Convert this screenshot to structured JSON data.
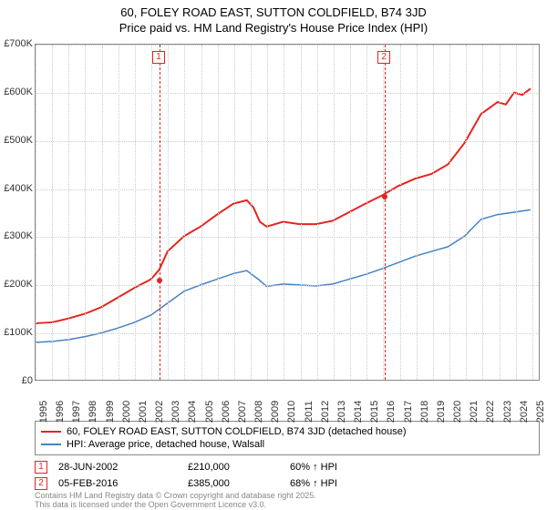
{
  "title_line1": "60, FOLEY ROAD EAST, SUTTON COLDFIELD, B74 3JD",
  "title_line2": "Price paid vs. HM Land Registry's House Price Index (HPI)",
  "chart": {
    "type": "line",
    "background_color": "#ffffff",
    "grid_color": "#cccccc",
    "border_color": "#888888",
    "xlim": [
      1995,
      2025.5
    ],
    "ylim": [
      0,
      700000
    ],
    "ytick_step": 100000,
    "yticks": [
      "£0",
      "£100K",
      "£200K",
      "£300K",
      "£400K",
      "£500K",
      "£600K",
      "£700K"
    ],
    "xticks": [
      1995,
      1996,
      1997,
      1998,
      1999,
      2000,
      2001,
      2002,
      2003,
      2004,
      2005,
      2006,
      2007,
      2008,
      2009,
      2010,
      2011,
      2012,
      2013,
      2014,
      2015,
      2016,
      2017,
      2018,
      2019,
      2020,
      2021,
      2022,
      2023,
      2024,
      2025
    ],
    "label_fontsize": 11,
    "title_fontsize": 13,
    "series": [
      {
        "name": "60, FOLEY ROAD EAST, SUTTON COLDFIELD, B74 3JD (detached house)",
        "color": "#e6241e",
        "line_width": 2,
        "data": [
          [
            1995,
            118000
          ],
          [
            1996,
            120000
          ],
          [
            1997,
            128000
          ],
          [
            1998,
            138000
          ],
          [
            1999,
            152000
          ],
          [
            2000,
            172000
          ],
          [
            2001,
            192000
          ],
          [
            2002,
            210000
          ],
          [
            2002.5,
            230000
          ],
          [
            2003,
            268000
          ],
          [
            2004,
            300000
          ],
          [
            2005,
            320000
          ],
          [
            2006,
            345000
          ],
          [
            2007,
            368000
          ],
          [
            2007.8,
            375000
          ],
          [
            2008.2,
            360000
          ],
          [
            2008.6,
            330000
          ],
          [
            2009,
            320000
          ],
          [
            2010,
            330000
          ],
          [
            2011,
            325000
          ],
          [
            2012,
            325000
          ],
          [
            2013,
            332000
          ],
          [
            2014,
            350000
          ],
          [
            2015,
            368000
          ],
          [
            2016,
            385000
          ],
          [
            2017,
            405000
          ],
          [
            2018,
            420000
          ],
          [
            2019,
            430000
          ],
          [
            2020,
            450000
          ],
          [
            2021,
            495000
          ],
          [
            2022,
            555000
          ],
          [
            2023,
            580000
          ],
          [
            2023.5,
            575000
          ],
          [
            2024,
            600000
          ],
          [
            2024.5,
            595000
          ],
          [
            2025,
            608000
          ]
        ]
      },
      {
        "name": "HPI: Average price, detached house, Walsall",
        "color": "#4682c4",
        "line_width": 1.5,
        "data": [
          [
            1995,
            78000
          ],
          [
            1996,
            80000
          ],
          [
            1997,
            84000
          ],
          [
            1998,
            90000
          ],
          [
            1999,
            98000
          ],
          [
            2000,
            108000
          ],
          [
            2001,
            120000
          ],
          [
            2002,
            135000
          ],
          [
            2003,
            160000
          ],
          [
            2004,
            185000
          ],
          [
            2005,
            198000
          ],
          [
            2006,
            210000
          ],
          [
            2007,
            222000
          ],
          [
            2007.8,
            228000
          ],
          [
            2008.5,
            210000
          ],
          [
            2009,
            195000
          ],
          [
            2010,
            200000
          ],
          [
            2011,
            198000
          ],
          [
            2012,
            196000
          ],
          [
            2013,
            200000
          ],
          [
            2014,
            210000
          ],
          [
            2015,
            220000
          ],
          [
            2016,
            232000
          ],
          [
            2017,
            245000
          ],
          [
            2018,
            258000
          ],
          [
            2019,
            268000
          ],
          [
            2020,
            278000
          ],
          [
            2021,
            300000
          ],
          [
            2022,
            335000
          ],
          [
            2023,
            345000
          ],
          [
            2024,
            350000
          ],
          [
            2025,
            355000
          ]
        ]
      }
    ],
    "markers": [
      {
        "label": "1",
        "x": 2002.49,
        "y": 210000,
        "color": "#e6241e"
      },
      {
        "label": "2",
        "x": 2016.1,
        "y": 385000,
        "color": "#e6241e"
      }
    ]
  },
  "legend": {
    "items": [
      {
        "label": "60, FOLEY ROAD EAST, SUTTON COLDFIELD, B74 3JD (detached house)",
        "color": "#e6241e"
      },
      {
        "label": "HPI: Average price, detached house, Walsall",
        "color": "#4682c4"
      }
    ]
  },
  "sales": [
    {
      "marker": "1",
      "marker_color": "#e6241e",
      "date": "28-JUN-2002",
      "price": "£210,000",
      "pct": "60% ↑ HPI"
    },
    {
      "marker": "2",
      "marker_color": "#e6241e",
      "date": "05-FEB-2016",
      "price": "£385,000",
      "pct": "68% ↑ HPI"
    }
  ],
  "footer_line1": "Contains HM Land Registry data © Crown copyright and database right 2025.",
  "footer_line2": "This data is licensed under the Open Government Licence v3.0."
}
